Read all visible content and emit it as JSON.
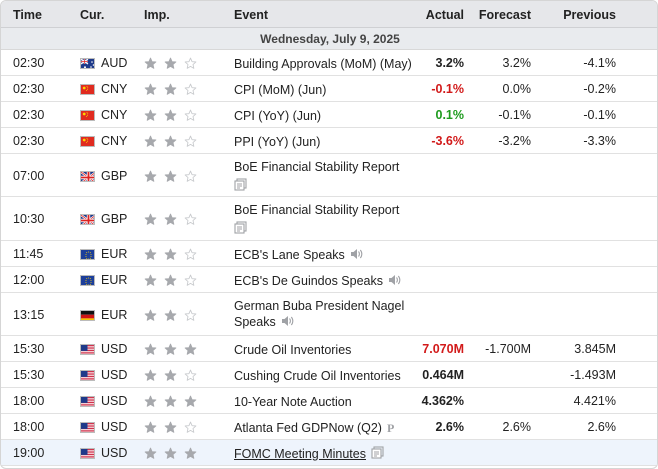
{
  "header": {
    "time": "Time",
    "currency": "Cur.",
    "importance": "Imp.",
    "event": "Event",
    "actual": "Actual",
    "forecast": "Forecast",
    "previous": "Previous"
  },
  "date_label": "Wednesday, July 9, 2025",
  "colors": {
    "negative": "#d21a1a",
    "positive": "#1d9b1d",
    "star_filled": "#a7a9ad",
    "star_empty": "#c8cacd"
  },
  "rows": [
    {
      "time": "02:30",
      "flag": "au-flag",
      "currency": "AUD",
      "stars": 2,
      "event": "Building Approvals (MoM) (May)",
      "event2": "",
      "actual": "3.2%",
      "actual_color": "",
      "forecast": "3.2%",
      "previous": "-4.1%",
      "icon": ""
    },
    {
      "time": "02:30",
      "flag": "cn-flag",
      "currency": "CNY",
      "stars": 2,
      "event": "CPI (MoM) (Jun)",
      "event2": "",
      "actual": "-0.1%",
      "actual_color": "red",
      "forecast": "0.0%",
      "previous": "-0.2%",
      "icon": ""
    },
    {
      "time": "02:30",
      "flag": "cn-flag",
      "currency": "CNY",
      "stars": 2,
      "event": "CPI (YoY) (Jun)",
      "event2": "",
      "actual": "0.1%",
      "actual_color": "green",
      "forecast": "-0.1%",
      "previous": "-0.1%",
      "icon": ""
    },
    {
      "time": "02:30",
      "flag": "cn-flag",
      "currency": "CNY",
      "stars": 2,
      "event": "PPI (YoY) (Jun)",
      "event2": "",
      "actual": "-3.6%",
      "actual_color": "red",
      "forecast": "-3.2%",
      "previous": "-3.3%",
      "icon": ""
    },
    {
      "time": "07:00",
      "flag": "gb-flag",
      "currency": "GBP",
      "stars": 2,
      "event": "BoE Financial Stability Report",
      "event2": "",
      "actual": "",
      "actual_color": "",
      "forecast": "",
      "previous": "",
      "icon": "document-icon-below"
    },
    {
      "time": "10:30",
      "flag": "gb-flag",
      "currency": "GBP",
      "stars": 2,
      "event": "BoE Financial Stability Report",
      "event2": "",
      "actual": "",
      "actual_color": "",
      "forecast": "",
      "previous": "",
      "icon": "document-icon-below"
    },
    {
      "time": "11:45",
      "flag": "eu-flag",
      "currency": "EUR",
      "stars": 2,
      "event": "ECB's Lane Speaks",
      "event2": "",
      "actual": "",
      "actual_color": "",
      "forecast": "",
      "previous": "",
      "icon": "speaker-icon"
    },
    {
      "time": "12:00",
      "flag": "eu-flag",
      "currency": "EUR",
      "stars": 2,
      "event": "ECB's De Guindos Speaks",
      "event2": "",
      "actual": "",
      "actual_color": "",
      "forecast": "",
      "previous": "",
      "icon": "speaker-icon"
    },
    {
      "time": "13:15",
      "flag": "de-flag",
      "currency": "EUR",
      "stars": 2,
      "event": "German Buba President Nagel",
      "event2": "Speaks",
      "actual": "",
      "actual_color": "",
      "forecast": "",
      "previous": "",
      "icon": "speaker-icon"
    },
    {
      "time": "15:30",
      "flag": "us-flag",
      "currency": "USD",
      "stars": 3,
      "event": "Crude Oil Inventories",
      "event2": "",
      "actual": "7.070M",
      "actual_color": "red",
      "forecast": "-1.700M",
      "previous": "3.845M",
      "icon": ""
    },
    {
      "time": "15:30",
      "flag": "us-flag",
      "currency": "USD",
      "stars": 2,
      "event": "Cushing Crude Oil Inventories",
      "event2": "",
      "actual": "0.464M",
      "actual_color": "",
      "forecast": "",
      "previous": "-1.493M",
      "icon": ""
    },
    {
      "time": "18:00",
      "flag": "us-flag",
      "currency": "USD",
      "stars": 3,
      "event": "10-Year Note Auction",
      "event2": "",
      "actual": "4.362%",
      "actual_color": "",
      "forecast": "",
      "previous": "4.421%",
      "icon": ""
    },
    {
      "time": "18:00",
      "flag": "us-flag",
      "currency": "USD",
      "stars": 2,
      "event": "Atlanta Fed GDPNow (Q2)",
      "event2": "",
      "actual": "2.6%",
      "actual_color": "",
      "forecast": "2.6%",
      "previous": "2.6%",
      "icon": "preliminary-icon"
    },
    {
      "time": "19:00",
      "flag": "us-flag",
      "currency": "USD",
      "stars": 3,
      "event": "FOMC Meeting Minutes",
      "event2": "",
      "actual": "",
      "actual_color": "",
      "forecast": "",
      "previous": "",
      "icon": "document-icon"
    }
  ]
}
